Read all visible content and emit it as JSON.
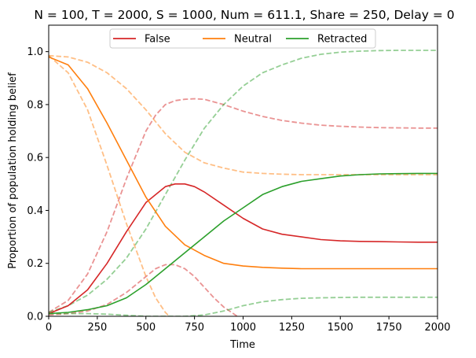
{
  "chart_data": {
    "type": "line",
    "title": "N = 100, T = 2000, S = 1000, Num = 611.1, Share = 250, Delay = 0",
    "xlabel": "Time",
    "ylabel": "Proportion of population holding belief",
    "xlim": [
      0,
      2000
    ],
    "ylim": [
      0,
      1.1
    ],
    "xticks": [
      0,
      250,
      500,
      750,
      1000,
      1250,
      1500,
      1750,
      2000
    ],
    "yticks": [
      0.0,
      0.2,
      0.4,
      0.6,
      0.8,
      1.0
    ],
    "xtick_labels": [
      "0",
      "250",
      "500",
      "750",
      "1000",
      "1250",
      "1500",
      "1750",
      "2000"
    ],
    "ytick_labels": [
      "0.0",
      "0.2",
      "0.4",
      "0.6",
      "0.8",
      "1.0"
    ],
    "grid": false,
    "legend": {
      "placement": "top-center",
      "entries": [
        {
          "label": "False",
          "color": "#d62728"
        },
        {
          "label": "Neutral",
          "color": "#ff7f0e"
        },
        {
          "label": "Retracted",
          "color": "#2ca02c"
        }
      ]
    },
    "series": [
      {
        "name": "False",
        "color": "#d62728",
        "style": "solid",
        "x": [
          0,
          100,
          200,
          300,
          400,
          500,
          600,
          650,
          700,
          750,
          800,
          900,
          1000,
          1100,
          1200,
          1300,
          1400,
          1500,
          1600,
          1700,
          1800,
          1900,
          2000
        ],
        "y": [
          0.01,
          0.04,
          0.1,
          0.2,
          0.32,
          0.43,
          0.49,
          0.5,
          0.5,
          0.49,
          0.47,
          0.42,
          0.37,
          0.33,
          0.31,
          0.3,
          0.29,
          0.285,
          0.283,
          0.282,
          0.281,
          0.28,
          0.28
        ]
      },
      {
        "name": "Neutral",
        "color": "#ff7f0e",
        "style": "solid",
        "x": [
          0,
          100,
          200,
          300,
          400,
          500,
          600,
          700,
          800,
          900,
          1000,
          1100,
          1200,
          1300,
          1400,
          1500,
          1600,
          1700,
          1800,
          1900,
          2000
        ],
        "y": [
          0.98,
          0.95,
          0.86,
          0.73,
          0.59,
          0.45,
          0.34,
          0.27,
          0.23,
          0.2,
          0.19,
          0.185,
          0.182,
          0.18,
          0.18,
          0.18,
          0.18,
          0.18,
          0.18,
          0.18,
          0.18
        ]
      },
      {
        "name": "Retracted",
        "color": "#2ca02c",
        "style": "solid",
        "x": [
          0,
          100,
          200,
          300,
          400,
          500,
          600,
          700,
          800,
          900,
          1000,
          1100,
          1200,
          1300,
          1400,
          1500,
          1600,
          1700,
          1800,
          1900,
          2000
        ],
        "y": [
          0.01,
          0.015,
          0.025,
          0.04,
          0.07,
          0.12,
          0.18,
          0.24,
          0.3,
          0.36,
          0.41,
          0.46,
          0.49,
          0.51,
          0.52,
          0.53,
          0.535,
          0.538,
          0.539,
          0.54,
          0.54
        ]
      },
      {
        "color": "#d62728",
        "style": "dashed",
        "x": [
          0,
          100,
          200,
          300,
          400,
          500,
          550,
          600,
          650,
          700,
          750,
          800,
          900,
          1000,
          1100,
          1200,
          1300,
          1400,
          1500,
          1600,
          1700,
          1800,
          1900,
          2000
        ],
        "y": [
          0.015,
          0.06,
          0.16,
          0.32,
          0.52,
          0.7,
          0.76,
          0.8,
          0.815,
          0.82,
          0.822,
          0.82,
          0.8,
          0.775,
          0.755,
          0.74,
          0.73,
          0.722,
          0.718,
          0.715,
          0.713,
          0.712,
          0.711,
          0.711
        ]
      },
      {
        "color": "#ff7f0e",
        "style": "dashed",
        "x": [
          0,
          100,
          200,
          300,
          400,
          500,
          600,
          700,
          800,
          900,
          1000,
          1100,
          1200,
          1300,
          1400,
          1500,
          1600,
          1700,
          1800,
          1900,
          2000
        ],
        "y": [
          0.985,
          0.98,
          0.96,
          0.92,
          0.86,
          0.78,
          0.69,
          0.62,
          0.58,
          0.56,
          0.545,
          0.54,
          0.537,
          0.535,
          0.535,
          0.535,
          0.535,
          0.535,
          0.535,
          0.535,
          0.535
        ]
      },
      {
        "color": "#2ca02c",
        "style": "dashed",
        "x": [
          0,
          100,
          200,
          300,
          400,
          500,
          600,
          700,
          800,
          900,
          1000,
          1100,
          1200,
          1300,
          1400,
          1500,
          1600,
          1700,
          1800,
          1900,
          2000
        ],
        "y": [
          0.015,
          0.04,
          0.08,
          0.14,
          0.22,
          0.33,
          0.46,
          0.59,
          0.71,
          0.8,
          0.87,
          0.92,
          0.95,
          0.975,
          0.99,
          0.998,
          1.002,
          1.004,
          1.005,
          1.005,
          1.005
        ]
      },
      {
        "color": "#d62728",
        "style": "dashed",
        "x": [
          0,
          100,
          200,
          300,
          400,
          500,
          550,
          600,
          650,
          700,
          750,
          800,
          850,
          900,
          950,
          970
        ],
        "y": [
          0.005,
          0.01,
          0.02,
          0.045,
          0.09,
          0.15,
          0.18,
          0.195,
          0.195,
          0.18,
          0.15,
          0.11,
          0.07,
          0.035,
          0.01,
          0.0
        ]
      },
      {
        "color": "#ff7f0e",
        "style": "dashed",
        "x": [
          0,
          100,
          200,
          300,
          400,
          500,
          550,
          600,
          620
        ],
        "y": [
          0.985,
          0.92,
          0.78,
          0.57,
          0.35,
          0.15,
          0.07,
          0.015,
          0.0
        ]
      },
      {
        "color": "#2ca02c",
        "style": "dashed",
        "x": [
          0,
          100,
          200,
          300,
          400,
          500,
          600,
          700,
          800,
          900,
          1000,
          1100,
          1200,
          1300,
          1400,
          1500,
          1600,
          1700,
          1800,
          1900,
          2000
        ],
        "y": [
          0.01,
          0.01,
          0.01,
          0.008,
          0.004,
          0.0,
          0.0,
          0.0,
          0.005,
          0.02,
          0.04,
          0.055,
          0.063,
          0.068,
          0.07,
          0.071,
          0.072,
          0.072,
          0.072,
          0.072,
          0.072
        ]
      }
    ]
  }
}
